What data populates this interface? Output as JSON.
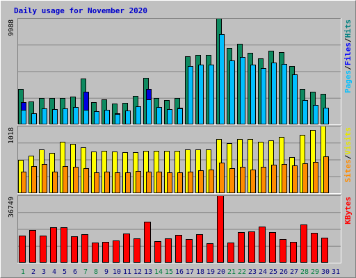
{
  "chart_data": {
    "type": "bar",
    "title": "Daily usage for November 2020",
    "x": [
      "1",
      "2",
      "3",
      "4",
      "5",
      "6",
      "7",
      "8",
      "9",
      "10",
      "11",
      "12",
      "13",
      "14",
      "15",
      "16",
      "17",
      "18",
      "19",
      "20",
      "21",
      "22",
      "23",
      "24",
      "25",
      "26",
      "27",
      "28",
      "29",
      "30",
      "31"
    ],
    "weekend_days": [
      "1",
      "7",
      "8",
      "14",
      "15",
      "21",
      "22",
      "28",
      "29"
    ],
    "weekend_label_color": "#008040",
    "weekday_label_color": "#000080",
    "panels": [
      {
        "name": "hits-files-pages",
        "ymax_label": "9988",
        "ymax": 9988,
        "right_label": [
          "Pages",
          "/",
          "Files",
          "/",
          "Hits"
        ],
        "right_label_colors": [
          "#00bfff",
          "#000000",
          "#0000ff",
          "#000000",
          "#008080"
        ],
        "series": [
          {
            "name": "Hits",
            "color": "#0e8a60",
            "values": [
              3300,
              2150,
              2500,
              2450,
              2500,
              2600,
              4300,
              2100,
              2350,
              1950,
              2050,
              2700,
              4400,
              2450,
              2300,
              2500,
              6400,
              6500,
              6500,
              9988,
              7200,
              7600,
              6700,
              6200,
              6900,
              6800,
              5500,
              3300,
              3100,
              2900,
              0
            ]
          },
          {
            "name": "Files",
            "color": "#0000e0",
            "values": [
              2100,
              1000,
              1350,
              1300,
              1300,
              1550,
              3100,
              1200,
              1200,
              1050,
              1250,
              1600,
              3300,
              1400,
              1250,
              1550,
              5400,
              5300,
              5400,
              5600,
              5300,
              5500,
              5100,
              5000,
              5400,
              5200,
              4600,
              1850,
              1650,
              1550,
              0
            ]
          },
          {
            "name": "Pages",
            "color": "#00bfff",
            "values": [
              1400,
              1050,
              1500,
              1450,
              1500,
              1650,
              1400,
              1250,
              1350,
              1000,
              1300,
              1700,
              2350,
              1600,
              1450,
              1500,
              5500,
              5600,
              5600,
              8500,
              6000,
              6300,
              5600,
              5300,
              5800,
              5700,
              4700,
              2300,
              1800,
              1550,
              0
            ]
          }
        ]
      },
      {
        "name": "visits-sites",
        "ymax_label": "1018",
        "ymax": 1018,
        "right_label": [
          "Sites",
          "/",
          "Visits"
        ],
        "right_label_colors": [
          "#ff8c00",
          "#000000",
          "#e6e600"
        ],
        "series": [
          {
            "name": "Visits",
            "color": "#ffff00",
            "values": [
              500,
              570,
              660,
              610,
              780,
              740,
              690,
              630,
              640,
              630,
              620,
              620,
              640,
              640,
              640,
              640,
              660,
              660,
              660,
              820,
              760,
              820,
              820,
              780,
              800,
              850,
              550,
              880,
              950,
              1018,
              0
            ]
          },
          {
            "name": "Sites",
            "color": "#ff8c00",
            "values": [
              330,
              410,
              440,
              330,
              410,
              400,
              380,
              320,
              330,
              320,
              320,
              340,
              330,
              330,
              320,
              320,
              330,
              350,
              360,
              460,
              380,
              400,
              360,
              400,
              430,
              440,
              420,
              450,
              470,
              560,
              0
            ]
          }
        ]
      },
      {
        "name": "kbytes",
        "ymax_label": "36749",
        "ymax": 36749,
        "right_label": [
          "KBytes"
        ],
        "right_label_colors": [
          "#ff0000"
        ],
        "series": [
          {
            "name": "KBytes",
            "color": "#ff0000",
            "values": [
              14700,
              17900,
              14900,
              19500,
              19500,
              14300,
              15600,
              11000,
              11500,
              12200,
              16000,
              13300,
              22300,
              11700,
              13300,
              15000,
              12900,
              15700,
              10500,
              36749,
              11100,
              16500,
              17000,
              19600,
              16700,
              12800,
              11500,
              20800,
              16200,
              13600,
              0
            ]
          }
        ]
      }
    ]
  }
}
